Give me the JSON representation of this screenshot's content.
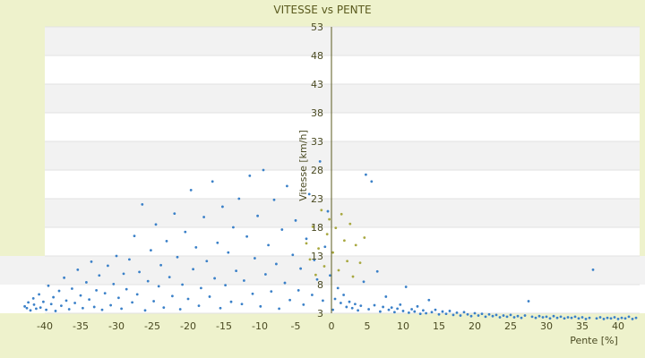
{
  "chart_data": {
    "type": "scatter",
    "title": "VITESSE vs PENTE",
    "xlabel": "Pente [%]",
    "ylabel": "Vitesse [km/h]",
    "xlim": [
      -40,
      43
    ],
    "ylim": [
      3,
      53
    ],
    "x_ticks": [
      -40,
      -35,
      -30,
      -25,
      -20,
      -15,
      -10,
      -5,
      0,
      5,
      10,
      15,
      20,
      25,
      30,
      35,
      40
    ],
    "y_ticks": [
      3,
      8,
      13,
      18,
      23,
      28,
      33,
      38,
      43,
      48,
      53
    ],
    "grid": "horizontal bands",
    "colors": {
      "background": "#eef2cc",
      "plot_band_light": "#ffffff",
      "plot_band_dark": "#f2f2f2",
      "series_main": "#3a80c8",
      "series_secondary": "#a8a840",
      "axis": "#5a5a1e"
    },
    "series": [
      {
        "color": "#3a80c8",
        "points": [
          [
            -42.8,
            4.2
          ],
          [
            -42.5,
            3.9
          ],
          [
            -42.3,
            4.9
          ],
          [
            -42.0,
            3.5
          ],
          [
            -41.6,
            5.6
          ],
          [
            -41.5,
            4.5
          ],
          [
            -41.2,
            3.8
          ],
          [
            -40.8,
            6.3
          ],
          [
            -40.6,
            4.0
          ],
          [
            -40.2,
            5.0
          ],
          [
            -39.8,
            3.6
          ],
          [
            -39.5,
            7.8
          ],
          [
            -39.1,
            4.6
          ],
          [
            -38.8,
            5.8
          ],
          [
            -38.5,
            3.4
          ],
          [
            -38.0,
            6.9
          ],
          [
            -37.7,
            4.3
          ],
          [
            -37.3,
            9.2
          ],
          [
            -37.0,
            5.2
          ],
          [
            -36.6,
            3.7
          ],
          [
            -36.2,
            7.3
          ],
          [
            -35.8,
            4.8
          ],
          [
            -35.4,
            10.6
          ],
          [
            -35.0,
            6.1
          ],
          [
            -34.7,
            3.9
          ],
          [
            -34.2,
            8.4
          ],
          [
            -33.8,
            5.4
          ],
          [
            -33.5,
            12.0
          ],
          [
            -33.1,
            4.1
          ],
          [
            -32.8,
            7.0
          ],
          [
            -32.4,
            9.6
          ],
          [
            -32.0,
            3.6
          ],
          [
            -31.6,
            6.5
          ],
          [
            -31.2,
            11.3
          ],
          [
            -30.8,
            4.4
          ],
          [
            -30.4,
            8.1
          ],
          [
            -30.0,
            13.0
          ],
          [
            -29.7,
            5.7
          ],
          [
            -29.3,
            3.8
          ],
          [
            -29.0,
            9.9
          ],
          [
            -28.6,
            7.2
          ],
          [
            -28.2,
            12.4
          ],
          [
            -27.8,
            4.9
          ],
          [
            -27.5,
            16.5
          ],
          [
            -27.1,
            6.3
          ],
          [
            -26.8,
            10.2
          ],
          [
            -26.4,
            22.0
          ],
          [
            -26.0,
            3.5
          ],
          [
            -25.6,
            8.6
          ],
          [
            -25.2,
            14.0
          ],
          [
            -24.8,
            5.1
          ],
          [
            -24.5,
            18.5
          ],
          [
            -24.1,
            7.7
          ],
          [
            -23.8,
            11.4
          ],
          [
            -23.4,
            4.0
          ],
          [
            -23.0,
            15.6
          ],
          [
            -22.6,
            9.3
          ],
          [
            -22.2,
            6.0
          ],
          [
            -21.9,
            20.4
          ],
          [
            -21.5,
            12.8
          ],
          [
            -21.1,
            3.7
          ],
          [
            -20.8,
            8.0
          ],
          [
            -20.4,
            17.2
          ],
          [
            -20.0,
            5.5
          ],
          [
            -19.6,
            24.5
          ],
          [
            -19.3,
            10.7
          ],
          [
            -18.9,
            14.5
          ],
          [
            -18.5,
            4.3
          ],
          [
            -18.2,
            7.4
          ],
          [
            -17.8,
            19.8
          ],
          [
            -17.4,
            12.1
          ],
          [
            -17.0,
            5.9
          ],
          [
            -16.6,
            26.0
          ],
          [
            -16.3,
            9.1
          ],
          [
            -15.9,
            15.3
          ],
          [
            -15.5,
            3.9
          ],
          [
            -15.2,
            21.6
          ],
          [
            -14.8,
            7.9
          ],
          [
            -14.4,
            13.6
          ],
          [
            -14.0,
            5.0
          ],
          [
            -13.7,
            18.0
          ],
          [
            -13.3,
            10.4
          ],
          [
            -12.9,
            23.0
          ],
          [
            -12.5,
            4.6
          ],
          [
            -12.2,
            8.7
          ],
          [
            -11.8,
            16.4
          ],
          [
            -11.4,
            27.0
          ],
          [
            -11.0,
            6.4
          ],
          [
            -10.7,
            12.6
          ],
          [
            -10.3,
            20.0
          ],
          [
            -9.9,
            4.2
          ],
          [
            -9.5,
            28.0
          ],
          [
            -9.2,
            9.8
          ],
          [
            -8.8,
            14.9
          ],
          [
            -8.4,
            6.8
          ],
          [
            -8.0,
            22.8
          ],
          [
            -7.7,
            11.6
          ],
          [
            -7.3,
            3.8
          ],
          [
            -6.9,
            17.6
          ],
          [
            -6.5,
            8.3
          ],
          [
            -6.2,
            25.2
          ],
          [
            -5.8,
            5.3
          ],
          [
            -5.4,
            13.2
          ],
          [
            -5.0,
            19.2
          ],
          [
            -4.6,
            7.0
          ],
          [
            -4.3,
            10.8
          ],
          [
            -3.9,
            4.5
          ],
          [
            -3.5,
            16.0
          ],
          [
            -3.1,
            23.8
          ],
          [
            -2.7,
            6.2
          ],
          [
            -2.4,
            12.3
          ],
          [
            -2.0,
            8.9
          ],
          [
            -1.6,
            29.5
          ],
          [
            -1.2,
            5.2
          ],
          [
            -0.9,
            14.6
          ],
          [
            -0.5,
            20.8
          ],
          [
            -0.2,
            9.6
          ],
          [
            0.2,
            3.6
          ],
          [
            0.5,
            5.5
          ],
          [
            0.9,
            7.4
          ],
          [
            1.3,
            4.8
          ],
          [
            1.7,
            6.2
          ],
          [
            2.1,
            4.1
          ],
          [
            2.5,
            5.0
          ],
          [
            2.9,
            3.9
          ],
          [
            3.3,
            4.6
          ],
          [
            3.7,
            3.5
          ],
          [
            4.1,
            4.3
          ],
          [
            4.5,
            8.5
          ],
          [
            4.8,
            27.2
          ],
          [
            5.2,
            3.7
          ],
          [
            5.6,
            26.0
          ],
          [
            6.0,
            4.4
          ],
          [
            6.4,
            10.3
          ],
          [
            6.8,
            3.3
          ],
          [
            7.2,
            4.1
          ],
          [
            7.6,
            5.9
          ],
          [
            8.0,
            3.6
          ],
          [
            8.4,
            4.0
          ],
          [
            8.8,
            3.2
          ],
          [
            9.2,
            3.8
          ],
          [
            9.6,
            4.5
          ],
          [
            10.0,
            3.4
          ],
          [
            10.4,
            7.6
          ],
          [
            10.8,
            3.1
          ],
          [
            11.2,
            3.7
          ],
          [
            11.6,
            3.3
          ],
          [
            12.0,
            4.2
          ],
          [
            12.4,
            2.9
          ],
          [
            12.8,
            3.5
          ],
          [
            13.2,
            3.0
          ],
          [
            13.6,
            5.3
          ],
          [
            14.0,
            3.2
          ],
          [
            14.5,
            3.6
          ],
          [
            15.0,
            2.8
          ],
          [
            15.5,
            3.3
          ],
          [
            16.0,
            2.9
          ],
          [
            16.5,
            3.4
          ],
          [
            17.0,
            2.7
          ],
          [
            17.5,
            3.1
          ],
          [
            18.0,
            2.6
          ],
          [
            18.5,
            3.2
          ],
          [
            19.0,
            2.8
          ],
          [
            19.5,
            2.5
          ],
          [
            20.0,
            3.0
          ],
          [
            20.5,
            2.6
          ],
          [
            21.0,
            2.9
          ],
          [
            21.5,
            2.4
          ],
          [
            22.0,
            2.8
          ],
          [
            22.5,
            2.5
          ],
          [
            23.0,
            2.7
          ],
          [
            23.5,
            2.3
          ],
          [
            24.0,
            2.6
          ],
          [
            24.5,
            2.4
          ],
          [
            25.0,
            2.7
          ],
          [
            25.5,
            2.3
          ],
          [
            26.0,
            2.5
          ],
          [
            26.5,
            2.2
          ],
          [
            27.0,
            2.6
          ],
          [
            27.5,
            5.1
          ],
          [
            28.0,
            2.4
          ],
          [
            28.5,
            2.2
          ],
          [
            29.0,
            2.5
          ],
          [
            29.5,
            2.3
          ],
          [
            30.0,
            2.4
          ],
          [
            30.5,
            2.1
          ],
          [
            31.0,
            2.5
          ],
          [
            31.5,
            2.2
          ],
          [
            32.0,
            2.4
          ],
          [
            32.5,
            2.1
          ],
          [
            33.0,
            2.3
          ],
          [
            33.5,
            2.2
          ],
          [
            34.0,
            2.4
          ],
          [
            34.5,
            2.1
          ],
          [
            35.0,
            2.3
          ],
          [
            35.5,
            2.0
          ],
          [
            36.0,
            2.2
          ],
          [
            36.5,
            10.6
          ],
          [
            37.0,
            2.1
          ],
          [
            37.5,
            2.3
          ],
          [
            38.0,
            2.0
          ],
          [
            38.5,
            2.2
          ],
          [
            39.0,
            2.1
          ],
          [
            39.5,
            2.3
          ],
          [
            40.0,
            2.0
          ],
          [
            40.5,
            2.2
          ],
          [
            41.0,
            2.1
          ],
          [
            41.5,
            2.4
          ],
          [
            42.0,
            2.0
          ],
          [
            42.5,
            2.2
          ]
        ]
      },
      {
        "color": "#a8a840",
        "points": [
          [
            -3.5,
            15.2
          ],
          [
            -3.0,
            12.4
          ],
          [
            -2.6,
            18.1
          ],
          [
            -2.2,
            9.7
          ],
          [
            -1.8,
            14.3
          ],
          [
            -1.4,
            21.0
          ],
          [
            -1.0,
            11.2
          ],
          [
            -0.6,
            16.8
          ],
          [
            -0.3,
            19.4
          ],
          [
            0.2,
            13.6
          ],
          [
            0.6,
            17.9
          ],
          [
            1.0,
            10.5
          ],
          [
            1.4,
            20.3
          ],
          [
            1.8,
            15.7
          ],
          [
            2.2,
            12.1
          ],
          [
            2.6,
            18.6
          ],
          [
            3.0,
            9.4
          ],
          [
            3.4,
            14.9
          ],
          [
            4.0,
            11.8
          ],
          [
            4.6,
            16.2
          ]
        ]
      }
    ]
  }
}
